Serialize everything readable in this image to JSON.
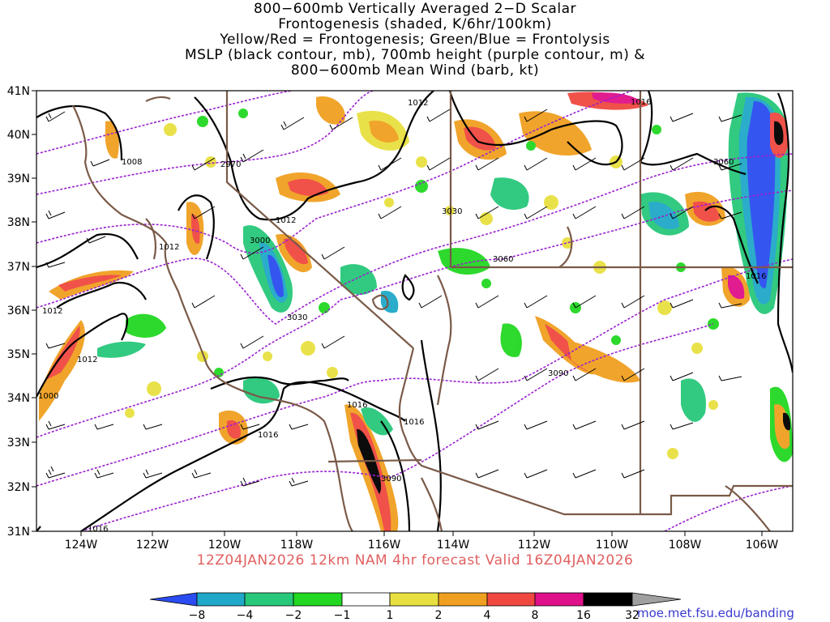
{
  "title_lines": [
    "800−600mb Vertically Averaged 2−D Scalar",
    "Frontogenesis (shaded, K/6hr/100km)",
    "Yellow/Red = Frontogenesis;  Green/Blue = Frontolysis",
    "MSLP (black contour, mb), 700mb height (purple contour, m) &",
    "800−600mb Mean Wind (barb, kt)"
  ],
  "map": {
    "lon_labels": [
      "124W",
      "122W",
      "120W",
      "118W",
      "116W",
      "114W",
      "112W",
      "110W",
      "108W",
      "106W"
    ],
    "lat_labels": [
      "41N",
      "40N",
      "39N",
      "38N",
      "37N",
      "36N",
      "35N",
      "34N",
      "33N",
      "32N",
      "31N"
    ],
    "mslp_labels": [
      "1008",
      "1012",
      "1012",
      "1012",
      "1012",
      "1012",
      "1016",
      "1016",
      "1016",
      "1016",
      "1016",
      "1000",
      "1016"
    ],
    "height_labels": [
      "2970",
      "3000",
      "3030",
      "3030",
      "3060",
      "3060",
      "3090",
      "3090"
    ]
  },
  "footer": "12Z04JAN2026  12km NAM 4hr forecast Valid 16Z04JAN2026",
  "colorbar": {
    "labels": [
      "−8",
      "−4",
      "−2",
      "−1",
      "1",
      "2",
      "4",
      "8",
      "16",
      "32"
    ],
    "colors": [
      "#2b4cf0",
      "#1fa8c8",
      "#28c87a",
      "#22d822",
      "#ffffff",
      "#e8e040",
      "#f0a020",
      "#f04840",
      "#e0108a",
      "#000000",
      "#a0a0a0"
    ]
  },
  "credit": "moe.met.fsu.edu/banding"
}
